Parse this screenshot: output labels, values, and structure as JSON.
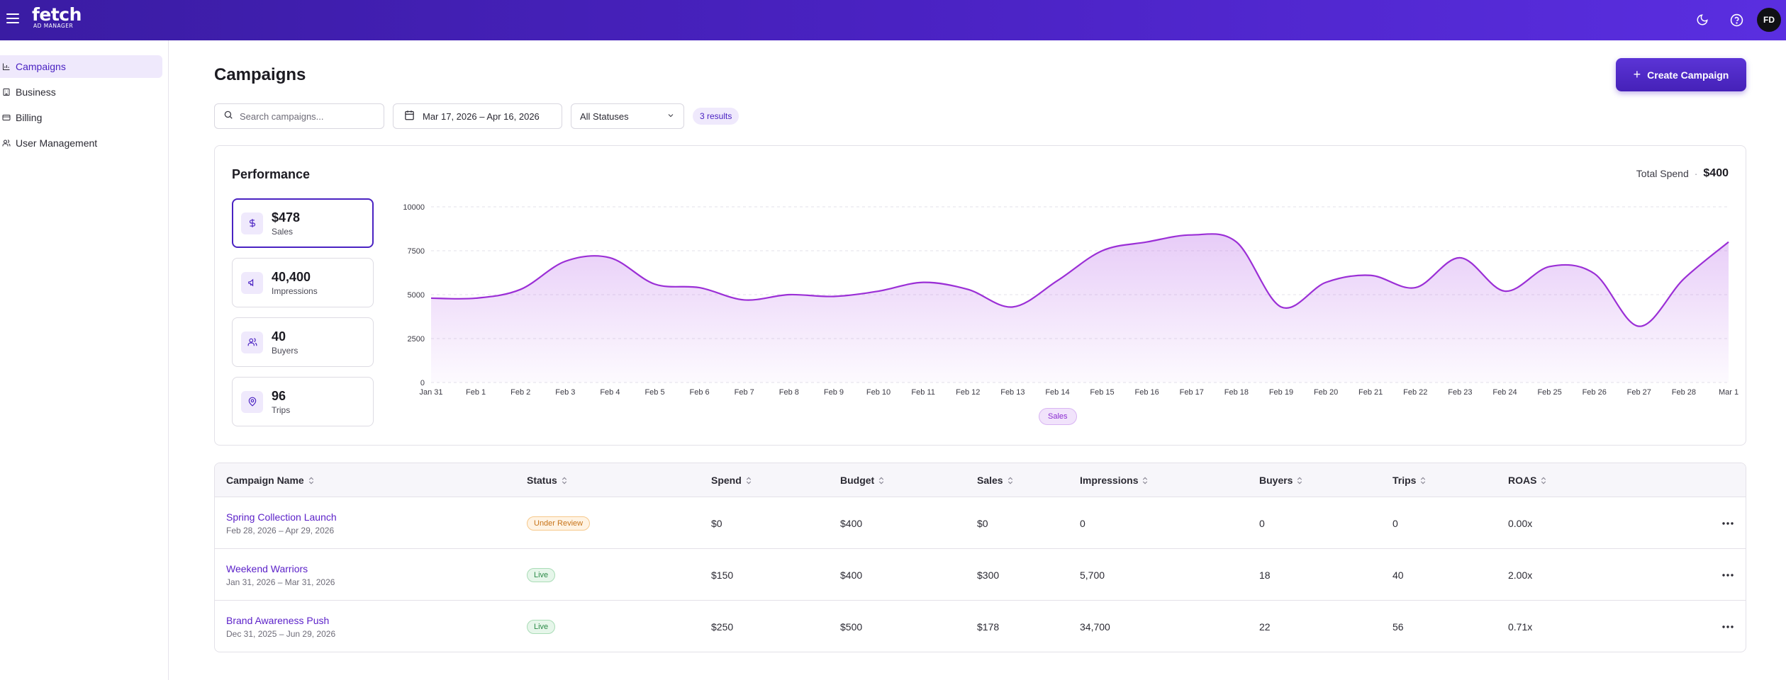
{
  "header": {
    "logo_word": "fetch",
    "logo_sub": "AD MANAGER",
    "avatar_initials": "FD",
    "brand_color": "#4a22c2"
  },
  "sidebar": {
    "items": [
      {
        "label": "Campaigns",
        "icon": "bar-chart-icon",
        "active": true
      },
      {
        "label": "Business",
        "icon": "building-icon",
        "active": false
      },
      {
        "label": "Billing",
        "icon": "credit-card-icon",
        "active": false
      },
      {
        "label": "User Management",
        "icon": "users-icon",
        "active": false
      }
    ]
  },
  "page": {
    "title": "Campaigns",
    "create_label": "Create Campaign"
  },
  "filters": {
    "search_placeholder": "Search campaigns...",
    "date_range": "Mar 17, 2026 – Apr 16, 2026",
    "status": "All Statuses",
    "results": "3 results"
  },
  "performance": {
    "title": "Performance",
    "total_spend_label": "Total Spend",
    "total_spend_value": "$400",
    "metrics": [
      {
        "value": "$478",
        "label": "Sales",
        "icon": "dollar-icon",
        "active": true
      },
      {
        "value": "40,400",
        "label": "Impressions",
        "icon": "megaphone-icon",
        "active": false
      },
      {
        "value": "40",
        "label": "Buyers",
        "icon": "users-icon",
        "active": false
      },
      {
        "value": "96",
        "label": "Trips",
        "icon": "map-pin-icon",
        "active": false
      }
    ],
    "legend": "Sales"
  },
  "chart_data": {
    "type": "area",
    "x": [
      "Jan 31",
      "Feb 1",
      "Feb 2",
      "Feb 3",
      "Feb 4",
      "Feb 5",
      "Feb 6",
      "Feb 7",
      "Feb 8",
      "Feb 9",
      "Feb 10",
      "Feb 11",
      "Feb 12",
      "Feb 13",
      "Feb 14",
      "Feb 15",
      "Feb 16",
      "Feb 17",
      "Feb 18",
      "Feb 19",
      "Feb 20",
      "Feb 21",
      "Feb 22",
      "Feb 23",
      "Feb 24",
      "Feb 25",
      "Feb 26",
      "Feb 27",
      "Feb 28",
      "Mar 1"
    ],
    "series": [
      {
        "name": "Sales",
        "color": "#9b2fd6",
        "values": [
          4800,
          4800,
          5300,
          6900,
          7100,
          5600,
          5400,
          4700,
          5000,
          4900,
          5200,
          5700,
          5300,
          4300,
          5800,
          7500,
          8000,
          8400,
          8000,
          4300,
          5700,
          6100,
          5400,
          7100,
          5200,
          6600,
          6200,
          3200,
          5900,
          8000
        ]
      }
    ],
    "y_ticks": [
      "0",
      "2500",
      "5000",
      "7500",
      "10000"
    ],
    "ylim": [
      0,
      10000
    ],
    "grid": true,
    "legend_position": "bottom-center"
  },
  "table": {
    "columns": [
      "Campaign Name",
      "Status",
      "Spend",
      "Budget",
      "Sales",
      "Impressions",
      "Buyers",
      "Trips",
      "ROAS"
    ],
    "rows": [
      {
        "name": "Spring Collection Launch",
        "dates": "Feb 28, 2026 – Apr 29, 2026",
        "status": "Under Review",
        "status_kind": "review",
        "spend": "$0",
        "budget": "$400",
        "sales": "$0",
        "impressions": "0",
        "buyers": "0",
        "trips": "0",
        "roas": "0.00x"
      },
      {
        "name": "Weekend Warriors",
        "dates": "Jan 31, 2026 – Mar 31, 2026",
        "status": "Live",
        "status_kind": "live",
        "spend": "$150",
        "budget": "$400",
        "sales": "$300",
        "impressions": "5,700",
        "buyers": "18",
        "trips": "40",
        "roas": "2.00x"
      },
      {
        "name": "Brand Awareness Push",
        "dates": "Dec 31, 2025 – Jun 29, 2026",
        "status": "Live",
        "status_kind": "live",
        "spend": "$250",
        "budget": "$500",
        "sales": "$178",
        "impressions": "34,700",
        "buyers": "22",
        "trips": "56",
        "roas": "0.71x"
      }
    ]
  }
}
